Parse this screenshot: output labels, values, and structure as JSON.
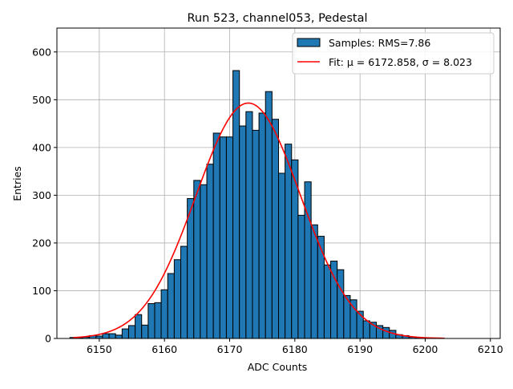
{
  "chart_data": {
    "type": "bar",
    "title": "Run 523, channel053, Pedestal",
    "xlabel": "ADC Counts",
    "ylabel": "Entries",
    "xlim": [
      6143.5,
      6211.5
    ],
    "ylim": [
      0,
      650
    ],
    "x_ticks": [
      6150,
      6160,
      6170,
      6180,
      6190,
      6200,
      6210
    ],
    "y_ticks": [
      0,
      100,
      200,
      300,
      400,
      500,
      600
    ],
    "grid": true,
    "legend_position": "top-right",
    "legend": {
      "samples": "Samples: RMS=7.86",
      "fit": "Fit: μ = 6172.858, σ = 8.023"
    },
    "histogram": {
      "name": "Samples: RMS=7.86",
      "bin_width": 1,
      "bins": [
        {
          "x": 6146,
          "y": 2
        },
        {
          "x": 6147,
          "y": 1
        },
        {
          "x": 6148,
          "y": 3
        },
        {
          "x": 6149,
          "y": 6
        },
        {
          "x": 6150,
          "y": 5
        },
        {
          "x": 6151,
          "y": 10
        },
        {
          "x": 6152,
          "y": 10
        },
        {
          "x": 6153,
          "y": 7
        },
        {
          "x": 6154,
          "y": 20
        },
        {
          "x": 6155,
          "y": 27
        },
        {
          "x": 6156,
          "y": 50
        },
        {
          "x": 6157,
          "y": 28
        },
        {
          "x": 6158,
          "y": 73
        },
        {
          "x": 6159,
          "y": 75
        },
        {
          "x": 6160,
          "y": 102
        },
        {
          "x": 6161,
          "y": 136
        },
        {
          "x": 6162,
          "y": 165
        },
        {
          "x": 6163,
          "y": 193
        },
        {
          "x": 6164,
          "y": 293
        },
        {
          "x": 6165,
          "y": 331
        },
        {
          "x": 6166,
          "y": 322
        },
        {
          "x": 6167,
          "y": 365
        },
        {
          "x": 6168,
          "y": 430
        },
        {
          "x": 6169,
          "y": 422
        },
        {
          "x": 6170,
          "y": 422
        },
        {
          "x": 6171,
          "y": 561
        },
        {
          "x": 6172,
          "y": 445
        },
        {
          "x": 6173,
          "y": 475
        },
        {
          "x": 6174,
          "y": 436
        },
        {
          "x": 6175,
          "y": 472
        },
        {
          "x": 6176,
          "y": 517
        },
        {
          "x": 6177,
          "y": 459
        },
        {
          "x": 6178,
          "y": 346
        },
        {
          "x": 6179,
          "y": 407
        },
        {
          "x": 6180,
          "y": 374
        },
        {
          "x": 6181,
          "y": 258
        },
        {
          "x": 6182,
          "y": 328
        },
        {
          "x": 6183,
          "y": 238
        },
        {
          "x": 6184,
          "y": 214
        },
        {
          "x": 6185,
          "y": 154
        },
        {
          "x": 6186,
          "y": 162
        },
        {
          "x": 6187,
          "y": 144
        },
        {
          "x": 6188,
          "y": 90
        },
        {
          "x": 6189,
          "y": 81
        },
        {
          "x": 6190,
          "y": 57
        },
        {
          "x": 6191,
          "y": 37
        },
        {
          "x": 6192,
          "y": 34
        },
        {
          "x": 6193,
          "y": 27
        },
        {
          "x": 6194,
          "y": 23
        },
        {
          "x": 6195,
          "y": 17
        },
        {
          "x": 6196,
          "y": 8
        },
        {
          "x": 6197,
          "y": 6
        },
        {
          "x": 6198,
          "y": 3
        },
        {
          "x": 6199,
          "y": 2
        },
        {
          "x": 6200,
          "y": 1
        },
        {
          "x": 6201,
          "y": 1
        },
        {
          "x": 6202,
          "y": 1
        }
      ]
    },
    "fit": {
      "name": "Fit: μ = 6172.858, σ = 8.023",
      "type": "gaussian",
      "mu": 6172.858,
      "sigma": 8.023,
      "amplitude": 493,
      "x_range": [
        6146,
        6203
      ]
    },
    "colors": {
      "bar_fill": "#1f77b4",
      "bar_edge": "#000000",
      "fit_line": "#ff0000",
      "grid": "#b0b0b0"
    }
  }
}
